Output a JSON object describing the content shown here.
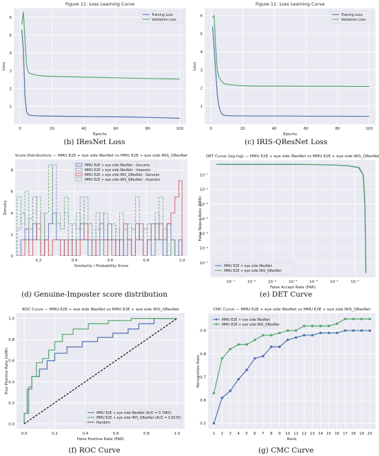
{
  "captions": {
    "b": "(b) IResNet Loss",
    "c": "(c) IRIS-QResNet Loss",
    "d": "(d) Genuine-Imposter score distribution",
    "e": "(e) DET Curve",
    "f": "(f) ROC Curve",
    "g": "(g) CMC Curve"
  },
  "colors": {
    "blue": "#4c72b0",
    "green": "#55a868",
    "red": "#c44e52",
    "purple": "#8172b2",
    "detline": "#3a7a80",
    "axesbg": "#eaeaf2",
    "grid": "#ffffff"
  },
  "chart_data": [
    {
      "id": "loss_iresnet",
      "type": "line",
      "title": "Figure 11: Loss Learning Curve",
      "xlabel": "Epochs",
      "ylabel": "Loss",
      "xlim": [
        -4,
        104
      ],
      "ylim": [
        0,
        6.5
      ],
      "xticks": [
        "0",
        "20",
        "40",
        "60",
        "80",
        "100"
      ],
      "yticks": [
        "1",
        "2",
        "3",
        "4",
        "5",
        "6"
      ],
      "legend": "top-right",
      "series": [
        {
          "name": "Training Loss",
          "color": "blue",
          "x": [
            1,
            2,
            3,
            4,
            5,
            6,
            8,
            10,
            15,
            20,
            30,
            40,
            50,
            60,
            70,
            80,
            90,
            100
          ],
          "y": [
            5.3,
            4.2,
            1.6,
            0.7,
            0.55,
            0.5,
            0.48,
            0.47,
            0.46,
            0.45,
            0.44,
            0.43,
            0.42,
            0.41,
            0.4,
            0.38,
            0.36,
            0.33
          ]
        },
        {
          "name": "Validation Loss",
          "color": "green",
          "x": [
            1,
            2,
            3,
            4,
            5,
            6,
            8,
            10,
            15,
            20,
            30,
            40,
            50,
            60,
            70,
            80,
            90,
            100
          ],
          "y": [
            5.6,
            6.3,
            4.8,
            3.3,
            2.95,
            2.85,
            2.8,
            2.75,
            2.7,
            2.68,
            2.66,
            2.64,
            2.62,
            2.6,
            2.58,
            2.56,
            2.55,
            2.53
          ]
        }
      ]
    },
    {
      "id": "loss_qresnet",
      "type": "line",
      "title": "Figure 11: Loss Learning Curve",
      "xlabel": "Epochs",
      "ylabel": "Loss",
      "xlim": [
        -4,
        104
      ],
      "ylim": [
        0,
        6.4
      ],
      "xticks": [
        "0",
        "20",
        "40",
        "60",
        "80",
        "100"
      ],
      "yticks": [
        "1",
        "2",
        "3",
        "4",
        "5",
        "6"
      ],
      "legend": "top-right",
      "series": [
        {
          "name": "Training Loss",
          "color": "blue",
          "x": [
            1,
            2,
            3,
            4,
            5,
            6,
            7,
            8,
            10,
            15,
            20,
            30,
            40,
            50,
            60,
            70,
            80,
            90,
            100
          ],
          "y": [
            5.4,
            4.2,
            2.9,
            1.6,
            1.0,
            0.7,
            0.55,
            0.5,
            0.47,
            0.46,
            0.46,
            0.45,
            0.45,
            0.45,
            0.44,
            0.44,
            0.44,
            0.43,
            0.43
          ]
        },
        {
          "name": "Validation Loss",
          "color": "green",
          "x": [
            1,
            2,
            3,
            4,
            5,
            6,
            7,
            8,
            10,
            15,
            20,
            30,
            40,
            50,
            60,
            70,
            80,
            90,
            100
          ],
          "y": [
            5.9,
            6.0,
            4.2,
            3.0,
            2.6,
            2.45,
            2.35,
            2.25,
            2.2,
            2.15,
            2.12,
            2.1,
            2.1,
            2.1,
            2.09,
            2.09,
            2.09,
            2.08,
            2.08
          ]
        }
      ]
    },
    {
      "id": "score_dist",
      "type": "histogram",
      "title": "Score Distributions — MMU E2E + eye side IResNet vs MMU E2E + eye side IRIS_QResNet",
      "xlabel": "Similarity / Probability Score",
      "ylabel": "Density",
      "xlim": [
        0.07,
        1.03
      ],
      "ylim": [
        0,
        9
      ],
      "xticks": [
        "0.2",
        "0.4",
        "0.6",
        "0.8",
        "1.0"
      ],
      "yticks": [
        "0",
        "2",
        "4",
        "6",
        "8"
      ],
      "legend": "top-center",
      "bin_edges": [
        0.08,
        0.102,
        0.124,
        0.146,
        0.168,
        0.19,
        0.212,
        0.234,
        0.256,
        0.278,
        0.3,
        0.322,
        0.344,
        0.366,
        0.388,
        0.41,
        0.432,
        0.454,
        0.476,
        0.498,
        0.52,
        0.542,
        0.564,
        0.586,
        0.608,
        0.63,
        0.652,
        0.674,
        0.696,
        0.718,
        0.74,
        0.762,
        0.784,
        0.806,
        0.828,
        0.85,
        0.872,
        0.894,
        0.916,
        0.938,
        0.96,
        0.982,
        1.0
      ],
      "series": [
        {
          "name": "MMU E2E + eye side IResNet - Genuine",
          "color": "blue",
          "style": "solid",
          "density": [
            0,
            1.5,
            2.5,
            1.5,
            3.0,
            1.5,
            0,
            1.5,
            3.0,
            4.0,
            1.5,
            1.5,
            0,
            1.5,
            0,
            1.5,
            3.0,
            1.5,
            0,
            1.5,
            0,
            3.0,
            1.5,
            3.0,
            1.5,
            0,
            1.5,
            0,
            1.5,
            0,
            3.0,
            1.5,
            0,
            1.5,
            0,
            3.0,
            1.5,
            0,
            3.0,
            1.5,
            0,
            1.5
          ]
        },
        {
          "name": "MMU E2E + eye side IResNet - Impostor",
          "color": "purple",
          "style": "dashed",
          "density": [
            2.5,
            4.0,
            2.5,
            3.5,
            5.5,
            2.5,
            4.0,
            1.5,
            3.0,
            8.5,
            3.0,
            2.5,
            4.0,
            1.5,
            3.0,
            2.5,
            5.5,
            1.5,
            3.0,
            1.5,
            2.5,
            4.0,
            1.5,
            3.0,
            1.5,
            2.5,
            1.5,
            2.5,
            1.5,
            2.5,
            3.0,
            1.5,
            2.5,
            3.0,
            1.5,
            4.0,
            1.5,
            2.5,
            0,
            1.5,
            0,
            0
          ]
        },
        {
          "name": "MMU E2E + eye side IRIS_QResNet - Genuine",
          "color": "red",
          "style": "solid",
          "density": [
            0,
            0,
            1.5,
            0,
            1.5,
            3.0,
            0,
            1.5,
            0,
            1.5,
            1.5,
            0,
            1.5,
            0,
            1.5,
            0,
            1.5,
            3.0,
            1.5,
            0,
            1.5,
            1.5,
            0,
            1.5,
            0,
            1.5,
            0,
            3.0,
            1.5,
            0,
            1.5,
            3.0,
            0,
            1.5,
            3.0,
            1.5,
            3.0,
            1.5,
            3.0,
            4.0,
            5.5,
            7.0
          ]
        },
        {
          "name": "MMU E2E + eye side IRIS_QResNet - Impostor",
          "color": "green",
          "style": "dashed",
          "density": [
            5.5,
            3.0,
            6.0,
            2.5,
            4.0,
            5.5,
            1.5,
            4.0,
            8.5,
            3.0,
            4.0,
            2.5,
            5.5,
            3.0,
            1.5,
            4.0,
            2.5,
            5.5,
            3.0,
            1.5,
            4.0,
            2.5,
            4.0,
            1.5,
            3.0,
            1.5,
            4.0,
            1.5,
            3.0,
            2.5,
            5.5,
            1.5,
            2.5,
            1.5,
            3.0,
            1.5,
            5.5,
            1.5,
            0,
            1.5,
            0,
            0
          ]
        }
      ]
    },
    {
      "id": "det",
      "type": "line",
      "title": "DET Curve (log-log) — MMU E2E + eye side IResNet vs MMU E2E + eye side IRIS_QResNet",
      "xlabel": "False Accept Rate (FAR)",
      "ylabel": "False Reject Rate (FRR)",
      "xscale": "log",
      "yscale": "log",
      "xlim": [
        1e-08,
        1
      ],
      "ylim": [
        1e-08,
        1
      ],
      "xticks": [
        "10⁻⁷",
        "10⁻⁶",
        "10⁻⁵",
        "10⁻⁴",
        "10⁻³",
        "10⁻²",
        "10⁻¹"
      ],
      "yticks": [
        "10⁻¹",
        "10⁻²",
        "10⁻³",
        "10⁻⁴",
        "10⁻⁵",
        "10⁻⁶",
        "10⁻⁷"
      ],
      "legend": "bottom-left",
      "series": [
        {
          "name": "MMU E2E + eye side IResNet",
          "color": "blue",
          "x": [
            2e-08,
            1e-07,
            1e-06,
            1e-05,
            0.0001,
            0.001,
            0.01,
            0.05,
            0.15,
            0.25,
            0.3,
            0.32,
            0.33,
            0.33
          ],
          "y": [
            0.5,
            0.5,
            0.5,
            0.5,
            0.5,
            0.49,
            0.45,
            0.4,
            0.3,
            0.1,
            0.001,
            1e-05,
            1e-07,
            2e-08
          ]
        },
        {
          "name": "MMU E2E + eye side IRIS_QResNet",
          "color": "green",
          "x": [
            2e-08,
            1e-07,
            1e-06,
            1e-05,
            0.0001,
            0.001,
            0.01,
            0.05,
            0.16,
            0.26,
            0.31,
            0.33,
            0.34,
            0.34
          ],
          "y": [
            0.52,
            0.52,
            0.52,
            0.52,
            0.52,
            0.5,
            0.46,
            0.41,
            0.31,
            0.1,
            0.001,
            1e-05,
            1e-07,
            2e-08
          ]
        }
      ]
    },
    {
      "id": "roc",
      "type": "line",
      "title": "ROC Curve — MMU E2E + eye side IResNet vs MMU E2E + eye side IRIS_QResNet",
      "xlabel": "False Positive Rate (FAR)",
      "ylabel": "True Positive Rate (GAR)",
      "xlim": [
        -0.05,
        1.05
      ],
      "ylim": [
        -0.05,
        1.05
      ],
      "xticks": [
        "0.0",
        "0.2",
        "0.4",
        "0.6",
        "0.8",
        "1.0"
      ],
      "yticks": [
        "0.0",
        "0.2",
        "0.4",
        "0.6",
        "0.8",
        "1.0"
      ],
      "legend": "bottom-right",
      "series": [
        {
          "name": "MMU E2E + eye side IResNet (AUC = 0.7985)",
          "color": "blue",
          "x": [
            0,
            0.0,
            0.02,
            0.02,
            0.05,
            0.05,
            0.1,
            0.1,
            0.15,
            0.15,
            0.2,
            0.2,
            0.28,
            0.28,
            0.38,
            0.38,
            0.48,
            0.48,
            0.58,
            0.58,
            0.68,
            0.68,
            0.75,
            0.75,
            0.85,
            0.85,
            1.0
          ],
          "y": [
            0,
            0.1,
            0.1,
            0.33,
            0.33,
            0.45,
            0.45,
            0.52,
            0.52,
            0.6,
            0.6,
            0.67,
            0.67,
            0.73,
            0.73,
            0.78,
            0.78,
            0.82,
            0.82,
            0.86,
            0.86,
            0.9,
            0.9,
            0.95,
            0.95,
            1.0,
            1.0
          ]
        },
        {
          "name": "MMU E2E + eye side IRIS_QResNet (AUC = 0.8235)",
          "color": "green",
          "x": [
            0,
            0.0,
            0.03,
            0.03,
            0.05,
            0.05,
            0.08,
            0.08,
            0.12,
            0.12,
            0.16,
            0.16,
            0.2,
            0.2,
            0.25,
            0.25,
            0.32,
            0.32,
            0.42,
            0.42,
            0.55,
            0.55,
            0.7,
            0.7,
            1.0
          ],
          "y": [
            0,
            0.1,
            0.1,
            0.35,
            0.35,
            0.45,
            0.45,
            0.58,
            0.58,
            0.62,
            0.62,
            0.7,
            0.7,
            0.78,
            0.78,
            0.85,
            0.85,
            0.9,
            0.9,
            0.95,
            0.95,
            0.98,
            0.98,
            1.0,
            1.0
          ]
        },
        {
          "name": "Random",
          "color": "black",
          "style": "dashed",
          "x": [
            0,
            1
          ],
          "y": [
            0,
            1
          ]
        }
      ]
    },
    {
      "id": "cmc",
      "type": "line",
      "title": "CMC Curve — MMU E2E + eye side IResNet vs MMU E2E + eye side IRIS_QResNet",
      "xlabel": "Rank",
      "ylabel": "Recognition Rate",
      "xlim": [
        0.3,
        20.7
      ],
      "ylim": [
        0.475,
        0.975
      ],
      "xticks": [
        "1",
        "2",
        "3",
        "4",
        "5",
        "6",
        "7",
        "8",
        "9",
        "10",
        "11",
        "12",
        "13",
        "14",
        "15",
        "16",
        "17",
        "18",
        "19",
        "20"
      ],
      "yticks": [
        "0.5",
        "0.6",
        "0.7",
        "0.8",
        "0.9"
      ],
      "legend": "top-left",
      "series": [
        {
          "name": "MMU E2E + eye side IResNet",
          "color": "blue",
          "x": [
            1,
            2,
            3,
            4,
            5,
            6,
            7,
            8,
            9,
            10,
            11,
            12,
            13,
            14,
            15,
            16,
            17,
            18,
            19,
            20
          ],
          "y": [
            0.5,
            0.61,
            0.64,
            0.69,
            0.73,
            0.78,
            0.79,
            0.83,
            0.83,
            0.86,
            0.87,
            0.88,
            0.88,
            0.89,
            0.89,
            0.89,
            0.9,
            0.9,
            0.9,
            0.9
          ]
        },
        {
          "name": "MMU E2E + eye side IRIS_QResNet",
          "color": "green",
          "x": [
            1,
            2,
            3,
            4,
            5,
            6,
            7,
            8,
            9,
            10,
            11,
            12,
            13,
            14,
            15,
            16,
            17,
            18,
            19,
            20
          ],
          "y": [
            0.63,
            0.78,
            0.82,
            0.84,
            0.84,
            0.86,
            0.88,
            0.88,
            0.89,
            0.9,
            0.9,
            0.92,
            0.92,
            0.92,
            0.92,
            0.93,
            0.95,
            0.95,
            0.95,
            0.95
          ]
        }
      ]
    }
  ]
}
